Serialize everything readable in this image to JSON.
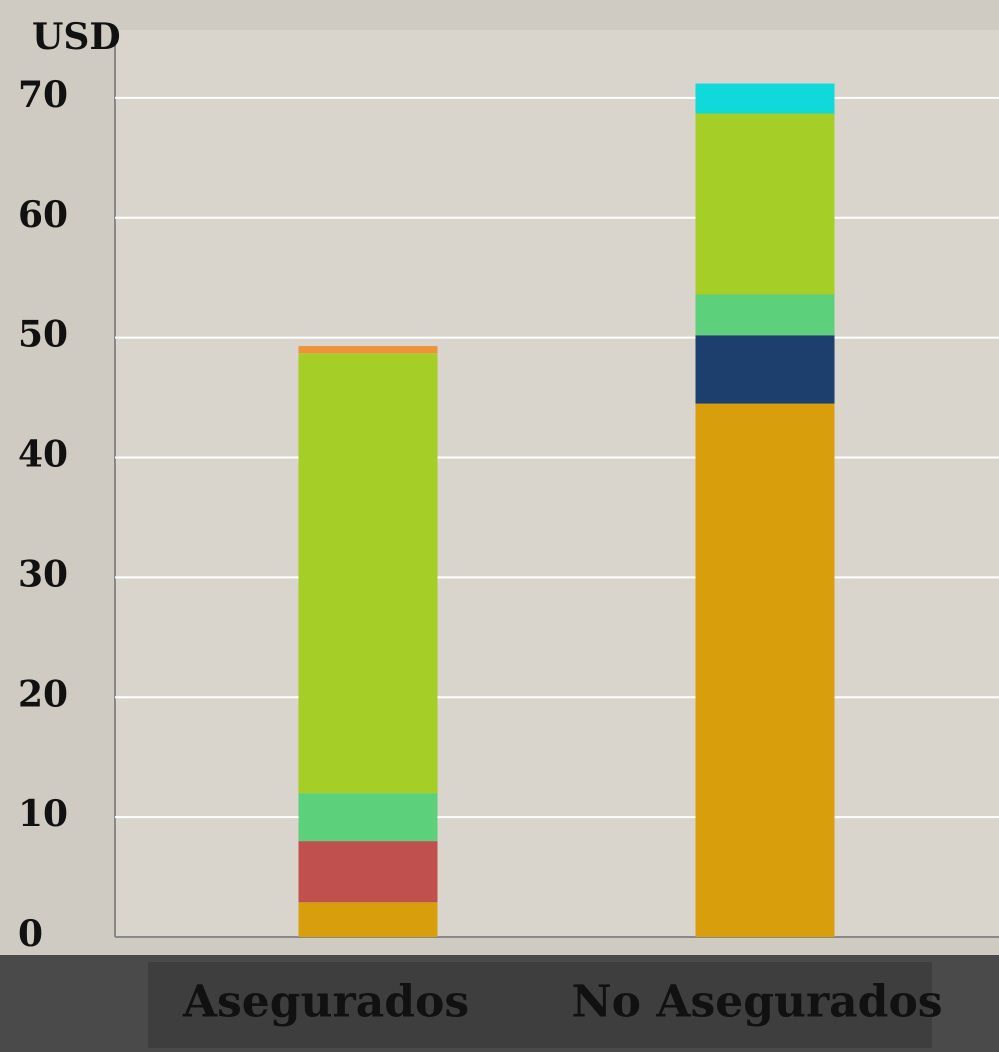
{
  "chart_data": {
    "type": "stacked_bar",
    "y_label": "USD",
    "categories": [
      "Asegurados",
      "No Asegurados"
    ],
    "series": [
      {
        "color": "#d99e0b",
        "values": [
          2.9,
          44.5
        ]
      },
      {
        "color": "#c0504d",
        "values": [
          5.1,
          0
        ]
      },
      {
        "color": "#1c3f6e",
        "values": [
          0,
          5.7
        ]
      },
      {
        "color": "#5cd07a",
        "values": [
          4.0,
          3.4
        ]
      },
      {
        "color": "#a5cf27",
        "values": [
          36.7,
          15.1
        ]
      },
      {
        "color": "#f0913c",
        "values": [
          0.6,
          0
        ]
      },
      {
        "color": "#0fd9d9",
        "values": [
          0,
          2.5
        ]
      }
    ],
    "ylim": [
      0,
      75.5
    ],
    "yticks": [
      0,
      10,
      20,
      30,
      40,
      50,
      60,
      70
    ],
    "grid": true
  }
}
